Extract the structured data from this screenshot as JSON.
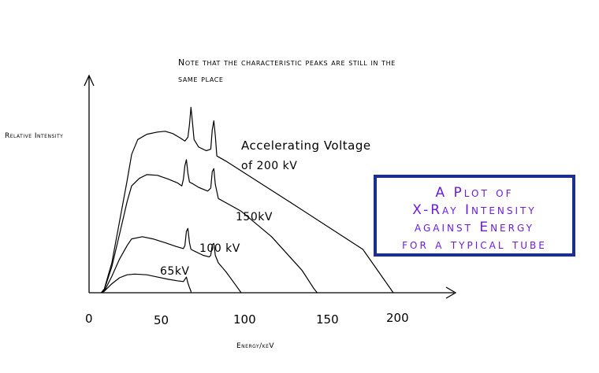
{
  "chart_data": {
    "type": "line",
    "xlabel": "Energy/keV",
    "ylabel": "Relative Intensity",
    "xticks": [
      "0",
      "50",
      "100",
      "150",
      "200"
    ],
    "xlim": [
      0,
      240
    ],
    "ylim": [
      0,
      260
    ],
    "note": [
      "Note that the characteristic peaks are still in the",
      "same place"
    ],
    "annotation_200": [
      "Accelerating Voltage",
      "of 200 kV"
    ],
    "series": [
      {
        "name": "200 kV",
        "label": "",
        "points": [
          [
            8,
            0
          ],
          [
            10,
            5
          ],
          [
            15,
            40
          ],
          [
            20,
            95
          ],
          [
            25,
            150
          ],
          [
            28,
            185
          ],
          [
            32,
            205
          ],
          [
            38,
            212
          ],
          [
            45,
            215
          ],
          [
            50,
            216
          ],
          [
            55,
            213
          ],
          [
            60,
            207
          ],
          [
            63,
            203
          ],
          [
            65,
            208
          ],
          [
            66,
            225
          ],
          [
            67,
            248
          ],
          [
            68,
            228
          ],
          [
            69,
            205
          ],
          [
            72,
            195
          ],
          [
            77,
            190
          ],
          [
            80,
            192
          ],
          [
            81,
            218
          ],
          [
            82,
            230
          ],
          [
            83,
            210
          ],
          [
            84,
            183
          ],
          [
            90,
            176
          ],
          [
            130,
            124
          ],
          [
            180,
            58
          ],
          [
            200,
            0
          ]
        ]
      },
      {
        "name": "150 kV",
        "label": "150kV",
        "points": [
          [
            8,
            0
          ],
          [
            10,
            4
          ],
          [
            15,
            35
          ],
          [
            20,
            78
          ],
          [
            25,
            122
          ],
          [
            28,
            143
          ],
          [
            33,
            153
          ],
          [
            38,
            158
          ],
          [
            45,
            157
          ],
          [
            52,
            152
          ],
          [
            58,
            147
          ],
          [
            61,
            143
          ],
          [
            62,
            152
          ],
          [
            63,
            170
          ],
          [
            64,
            178
          ],
          [
            65,
            160
          ],
          [
            66,
            148
          ],
          [
            68,
            146
          ],
          [
            72,
            141
          ],
          [
            78,
            136
          ],
          [
            80,
            140
          ],
          [
            81,
            162
          ],
          [
            82,
            166
          ],
          [
            83,
            145
          ],
          [
            85,
            126
          ],
          [
            100,
            109
          ],
          [
            120,
            75
          ],
          [
            140,
            30
          ],
          [
            148,
            5
          ],
          [
            150,
            0
          ]
        ]
      },
      {
        "name": "100 kV",
        "label": "100 kV",
        "points": [
          [
            8,
            0
          ],
          [
            10,
            2
          ],
          [
            15,
            22
          ],
          [
            20,
            45
          ],
          [
            25,
            63
          ],
          [
            28,
            72
          ],
          [
            35,
            75
          ],
          [
            42,
            72
          ],
          [
            50,
            67
          ],
          [
            57,
            62
          ],
          [
            62,
            59
          ],
          [
            63,
            63
          ],
          [
            64,
            82
          ],
          [
            65,
            86
          ],
          [
            66,
            67
          ],
          [
            67,
            58
          ],
          [
            70,
            55
          ],
          [
            75,
            50
          ],
          [
            79,
            48
          ],
          [
            80,
            50
          ],
          [
            81,
            64
          ],
          [
            82,
            66
          ],
          [
            83,
            50
          ],
          [
            85,
            40
          ],
          [
            90,
            28
          ],
          [
            95,
            14
          ],
          [
            100,
            0
          ]
        ]
      },
      {
        "name": "65 kV",
        "label": "65kV",
        "points": [
          [
            8,
            0
          ],
          [
            10,
            2
          ],
          [
            15,
            12
          ],
          [
            20,
            20
          ],
          [
            25,
            24
          ],
          [
            30,
            25
          ],
          [
            38,
            24
          ],
          [
            45,
            21
          ],
          [
            52,
            18
          ],
          [
            58,
            16
          ],
          [
            62,
            15
          ],
          [
            63,
            18
          ],
          [
            64,
            21
          ],
          [
            65,
            13
          ],
          [
            66,
            7
          ],
          [
            67,
            2
          ],
          [
            67,
            0
          ]
        ]
      }
    ],
    "title_box": {
      "lines": [
        "A Plot of",
        "X-Ray Intensity",
        "against Energy",
        "for a typical tube"
      ],
      "text_color": "#6a1ce0",
      "border_color": "#1c2f8f"
    },
    "colors": {
      "curve": "#000000",
      "axes": "#000000"
    }
  }
}
